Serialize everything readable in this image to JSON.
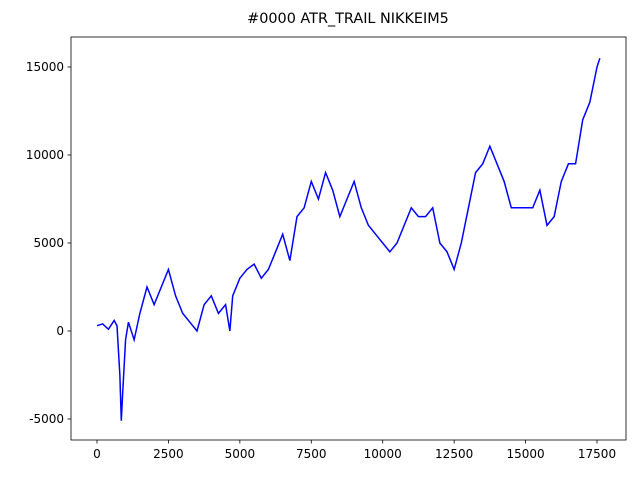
{
  "chart_data": {
    "type": "line",
    "title": "#0000 ATR_TRAIL NIKKEIM5",
    "x": [
      0,
      200,
      400,
      600,
      700,
      800,
      850,
      900,
      1000,
      1100,
      1300,
      1500,
      1750,
      2000,
      2250,
      2500,
      2750,
      3000,
      3250,
      3500,
      3750,
      4000,
      4250,
      4500,
      4650,
      4750,
      5000,
      5250,
      5500,
      5750,
      6000,
      6250,
      6500,
      6750,
      7000,
      7250,
      7500,
      7750,
      8000,
      8250,
      8500,
      8750,
      9000,
      9250,
      9500,
      9750,
      10000,
      10250,
      10500,
      11000,
      11250,
      11500,
      11750,
      12000,
      12250,
      12500,
      12750,
      13000,
      13250,
      13500,
      13750,
      14000,
      14250,
      14500,
      14750,
      15000,
      15250,
      15500,
      15750,
      16000,
      16250,
      16500,
      16750,
      17000,
      17250,
      17500,
      17600
    ],
    "series": [
      {
        "color": "#0000ff",
        "values": [
          300,
          400,
          100,
          600,
          300,
          -2500,
          -5100,
          -3500,
          -500,
          500,
          -500,
          1000,
          2500,
          1500,
          2500,
          3500,
          2000,
          1000,
          500,
          0,
          1500,
          2000,
          1000,
          1500,
          0,
          2000,
          3000,
          3500,
          3800,
          3000,
          3500,
          4500,
          5500,
          4000,
          6500,
          7000,
          8500,
          7500,
          9000,
          8000,
          6500,
          7500,
          8500,
          7000,
          6000,
          5500,
          5000,
          4500,
          5000,
          7000,
          6500,
          6500,
          7000,
          5000,
          4500,
          3500,
          5000,
          7000,
          9000,
          9500,
          10500,
          9500,
          8500,
          7000,
          7000,
          7000,
          7000,
          8000,
          6000,
          6500,
          8500,
          9500,
          9500,
          12000,
          13000,
          15000,
          15500
        ]
      }
    ],
    "xlim": [
      -910,
      18515
    ],
    "ylim": [
      -6193,
      16705
    ],
    "xticks": [
      0,
      2500,
      5000,
      7500,
      10000,
      12500,
      15000,
      17500
    ],
    "yticks": [
      -5000,
      0,
      5000,
      10000,
      15000
    ]
  }
}
